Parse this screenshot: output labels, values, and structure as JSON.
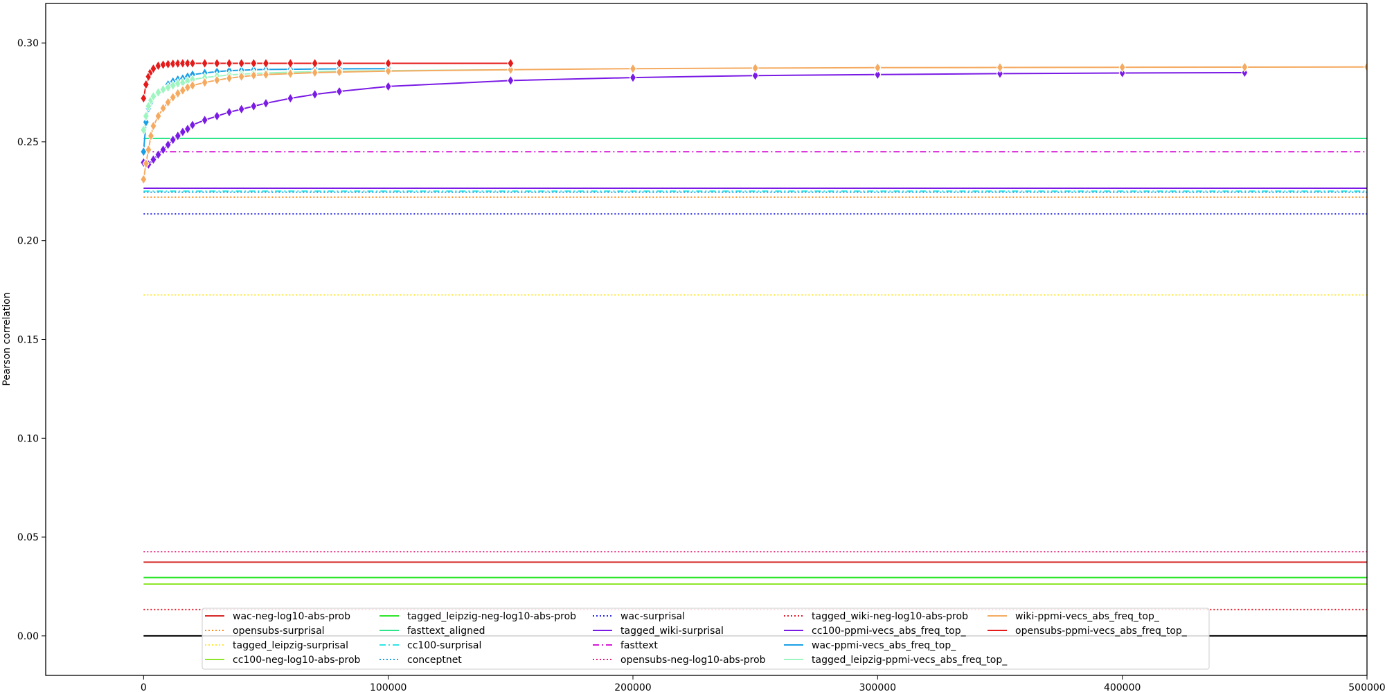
{
  "chart_data": {
    "type": "line",
    "title": "",
    "xlabel": "",
    "ylabel": "Pearson correlation",
    "xlim": [
      -40000,
      500000
    ],
    "ylim": [
      -0.02,
      0.32
    ],
    "x_ticks": [
      0,
      100000,
      200000,
      300000,
      400000,
      500000
    ],
    "x_tick_labels": [
      "0",
      "100000",
      "200000",
      "300000",
      "400000",
      "500000"
    ],
    "y_ticks": [
      0.0,
      0.05,
      0.1,
      0.15,
      0.2,
      0.25,
      0.3
    ],
    "y_tick_labels": [
      "0.00",
      "0.05",
      "0.10",
      "0.15",
      "0.20",
      "0.25",
      "0.30"
    ],
    "grid": false,
    "legend_position": "bottom-center",
    "legend_columns": 5,
    "zero_line": {
      "y": 0.0,
      "color": "#000000"
    },
    "horizontal_series": [
      {
        "name": "wac-neg-log10-abs-prob",
        "value": 0.0373,
        "color": "#d62728",
        "style": "solid"
      },
      {
        "name": "opensubs-surprisal",
        "value": 0.222,
        "color": "#ff8c1a",
        "style": "dotted"
      },
      {
        "name": "tagged_leipzig-surprisal",
        "value": 0.1725,
        "color": "#ffe633",
        "style": "dotted"
      },
      {
        "name": "cc100-neg-log10-abs-prob",
        "value": 0.0262,
        "color": "#8ee52a",
        "style": "solid"
      },
      {
        "name": "tagged_leipzig-neg-log10-abs-prob",
        "value": 0.0295,
        "color": "#2ee52a",
        "style": "solid"
      },
      {
        "name": "fasttext_aligned",
        "value": 0.2517,
        "color": "#2ee58c",
        "style": "solid"
      },
      {
        "name": "cc100-surprisal",
        "value": 0.225,
        "color": "#2ee5e5",
        "style": "dashdot"
      },
      {
        "name": "conceptnet",
        "value": 0.2245,
        "color": "#1a9fe5",
        "style": "dotted"
      },
      {
        "name": "wac-surprisal",
        "value": 0.2135,
        "color": "#2a2ae5",
        "style": "dotted"
      },
      {
        "name": "tagged_wiki-surprisal",
        "value": 0.2265,
        "color": "#7a1ae5",
        "style": "solid"
      },
      {
        "name": "fasttext",
        "value": 0.245,
        "color": "#d61ad6",
        "style": "dashdot"
      },
      {
        "name": "opensubs-neg-log10-abs-prob",
        "value": 0.0426,
        "color": "#e51a7a",
        "style": "dotted"
      },
      {
        "name": "tagged_wiki-neg-log10-abs-prob",
        "value": 0.0133,
        "color": "#e51a2a",
        "style": "dotted"
      }
    ],
    "series": [
      {
        "name": "cc100-ppmi-vecs_abs_freq_top_",
        "color": "#7a1ae5",
        "marker": "diamond",
        "x": [
          0,
          2000,
          4000,
          6000,
          8000,
          10000,
          12000,
          14000,
          16000,
          18000,
          20000,
          25000,
          30000,
          35000,
          40000,
          45000,
          50000,
          60000,
          70000,
          80000,
          100000,
          150000,
          200000,
          250000,
          300000,
          350000,
          400000,
          450000
        ],
        "values": [
          0.2395,
          0.2385,
          0.241,
          0.2435,
          0.246,
          0.2485,
          0.251,
          0.253,
          0.255,
          0.2565,
          0.2585,
          0.261,
          0.263,
          0.265,
          0.2665,
          0.268,
          0.2695,
          0.272,
          0.274,
          0.2755,
          0.278,
          0.281,
          0.2825,
          0.2835,
          0.284,
          0.2845,
          0.2848,
          0.285
        ]
      },
      {
        "name": "wac-ppmi-vecs_abs_freq_top_",
        "color": "#1a9fe5",
        "marker": "diamond",
        "x": [
          0,
          1000,
          2000,
          3000,
          4000,
          6000,
          8000,
          10000,
          12000,
          14000,
          16000,
          18000,
          20000,
          25000,
          30000,
          35000,
          40000,
          45000,
          50000,
          60000,
          70000,
          80000,
          100000
        ],
        "values": [
          0.245,
          0.26,
          0.267,
          0.27,
          0.2725,
          0.275,
          0.277,
          0.279,
          0.2805,
          0.2815,
          0.282,
          0.283,
          0.284,
          0.2848,
          0.2855,
          0.286,
          0.2862,
          0.2865,
          0.2866,
          0.2867,
          0.2868,
          0.2869,
          0.287
        ]
      },
      {
        "name": "tagged_leipzig-ppmi-vecs_abs_freq_top_",
        "color": "#9ef5c0",
        "marker": "diamond",
        "x": [
          0,
          1000,
          2000,
          3000,
          4000,
          6000,
          8000,
          10000,
          12000,
          14000,
          16000,
          18000,
          20000,
          25000,
          30000,
          35000,
          40000,
          45000,
          50000,
          60000,
          70000,
          80000,
          100000,
          150000
        ],
        "values": [
          0.256,
          0.263,
          0.268,
          0.271,
          0.273,
          0.275,
          0.2765,
          0.2775,
          0.2785,
          0.2795,
          0.28,
          0.2808,
          0.2815,
          0.2825,
          0.2832,
          0.2838,
          0.2842,
          0.2846,
          0.2848,
          0.2852,
          0.2855,
          0.2857,
          0.286,
          0.2865
        ]
      },
      {
        "name": "wiki-ppmi-vecs_abs_freq_top_",
        "color": "#f5aa60",
        "marker": "diamond",
        "x": [
          0,
          1000,
          2000,
          3000,
          4000,
          6000,
          8000,
          10000,
          12000,
          14000,
          16000,
          18000,
          20000,
          25000,
          30000,
          35000,
          40000,
          45000,
          50000,
          60000,
          70000,
          80000,
          100000,
          150000,
          200000,
          250000,
          300000,
          350000,
          400000,
          450000,
          500000
        ],
        "values": [
          0.231,
          0.239,
          0.246,
          0.253,
          0.258,
          0.263,
          0.267,
          0.27,
          0.2725,
          0.2745,
          0.276,
          0.2775,
          0.2785,
          0.28,
          0.2812,
          0.2822,
          0.283,
          0.2836,
          0.284,
          0.2845,
          0.285,
          0.2853,
          0.2858,
          0.2865,
          0.287,
          0.2873,
          0.2875,
          0.2876,
          0.2877,
          0.2878,
          0.2879
        ]
      },
      {
        "name": "opensubs-ppmi-vecs_abs_freq_top_",
        "color": "#e51a1a",
        "marker": "diamond",
        "x": [
          0,
          1000,
          2000,
          3000,
          4000,
          6000,
          8000,
          10000,
          12000,
          14000,
          16000,
          18000,
          20000,
          25000,
          30000,
          35000,
          40000,
          45000,
          50000,
          60000,
          70000,
          80000,
          100000,
          150000
        ],
        "values": [
          0.272,
          0.279,
          0.283,
          0.2855,
          0.287,
          0.2885,
          0.289,
          0.2893,
          0.2895,
          0.2896,
          0.2897,
          0.2897,
          0.2897,
          0.2897,
          0.2897,
          0.2897,
          0.2897,
          0.2897,
          0.2897,
          0.2897,
          0.2897,
          0.2897,
          0.2897,
          0.2897
        ]
      }
    ]
  }
}
